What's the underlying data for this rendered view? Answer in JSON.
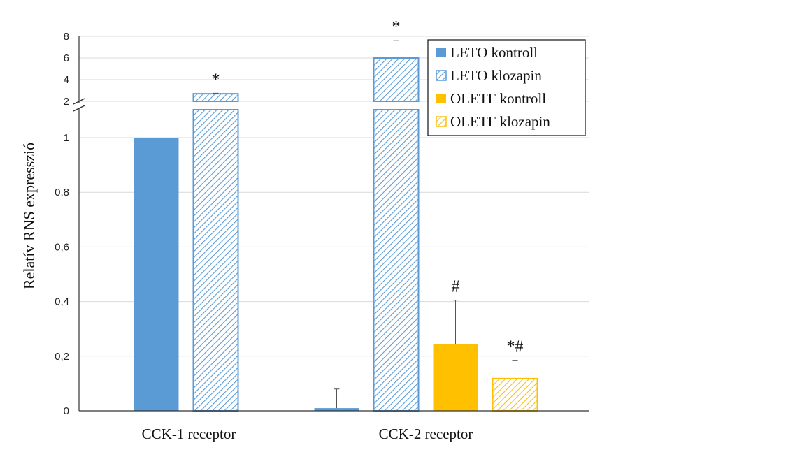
{
  "chart_data": {
    "type": "bar",
    "categories": [
      "CCK-1 receptor",
      "CCK-2 receptor"
    ],
    "ylabel": "Relatív RNS expresszió",
    "axis_break": true,
    "lower_axis": {
      "range": [
        0,
        1.1
      ],
      "ticks": [
        "0",
        "0,2",
        "0,4",
        "0,6",
        "0,8",
        "1"
      ],
      "tick_values": [
        0,
        0.2,
        0.4,
        0.6,
        0.8,
        1
      ]
    },
    "upper_axis": {
      "range": [
        2,
        8
      ],
      "ticks": [
        "2",
        "4",
        "6",
        "8"
      ],
      "tick_values": [
        2,
        4,
        6,
        8
      ]
    },
    "legend": {
      "position": "top-right",
      "entries": [
        "LETO kontroll",
        "LETO klozapin",
        "OLETF kontroll",
        "OLETF klozapin"
      ]
    },
    "series": [
      {
        "name": "LETO kontroll",
        "color": "#5b9bd5",
        "pattern": "solid",
        "values": [
          1.0,
          0.01
        ],
        "errors": [
          0.0,
          0.07
        ],
        "annotations": [
          "",
          ""
        ]
      },
      {
        "name": "LETO klozapin",
        "color": "#5b9bd5",
        "pattern": "hatch",
        "values": [
          2.7,
          6.0
        ],
        "errors": [
          0.05,
          1.6
        ],
        "annotations": [
          "*",
          "*"
        ]
      },
      {
        "name": "OLETF kontroll",
        "color": "#ffc000",
        "pattern": "solid",
        "values": [
          null,
          0.245
        ],
        "errors": [
          null,
          0.16
        ],
        "annotations": [
          "",
          "#"
        ]
      },
      {
        "name": "OLETF klozapin",
        "color": "#ffc000",
        "pattern": "hatch",
        "values": [
          null,
          0.118
        ],
        "errors": [
          null,
          0.067
        ],
        "annotations": [
          "",
          "*#"
        ]
      }
    ]
  }
}
